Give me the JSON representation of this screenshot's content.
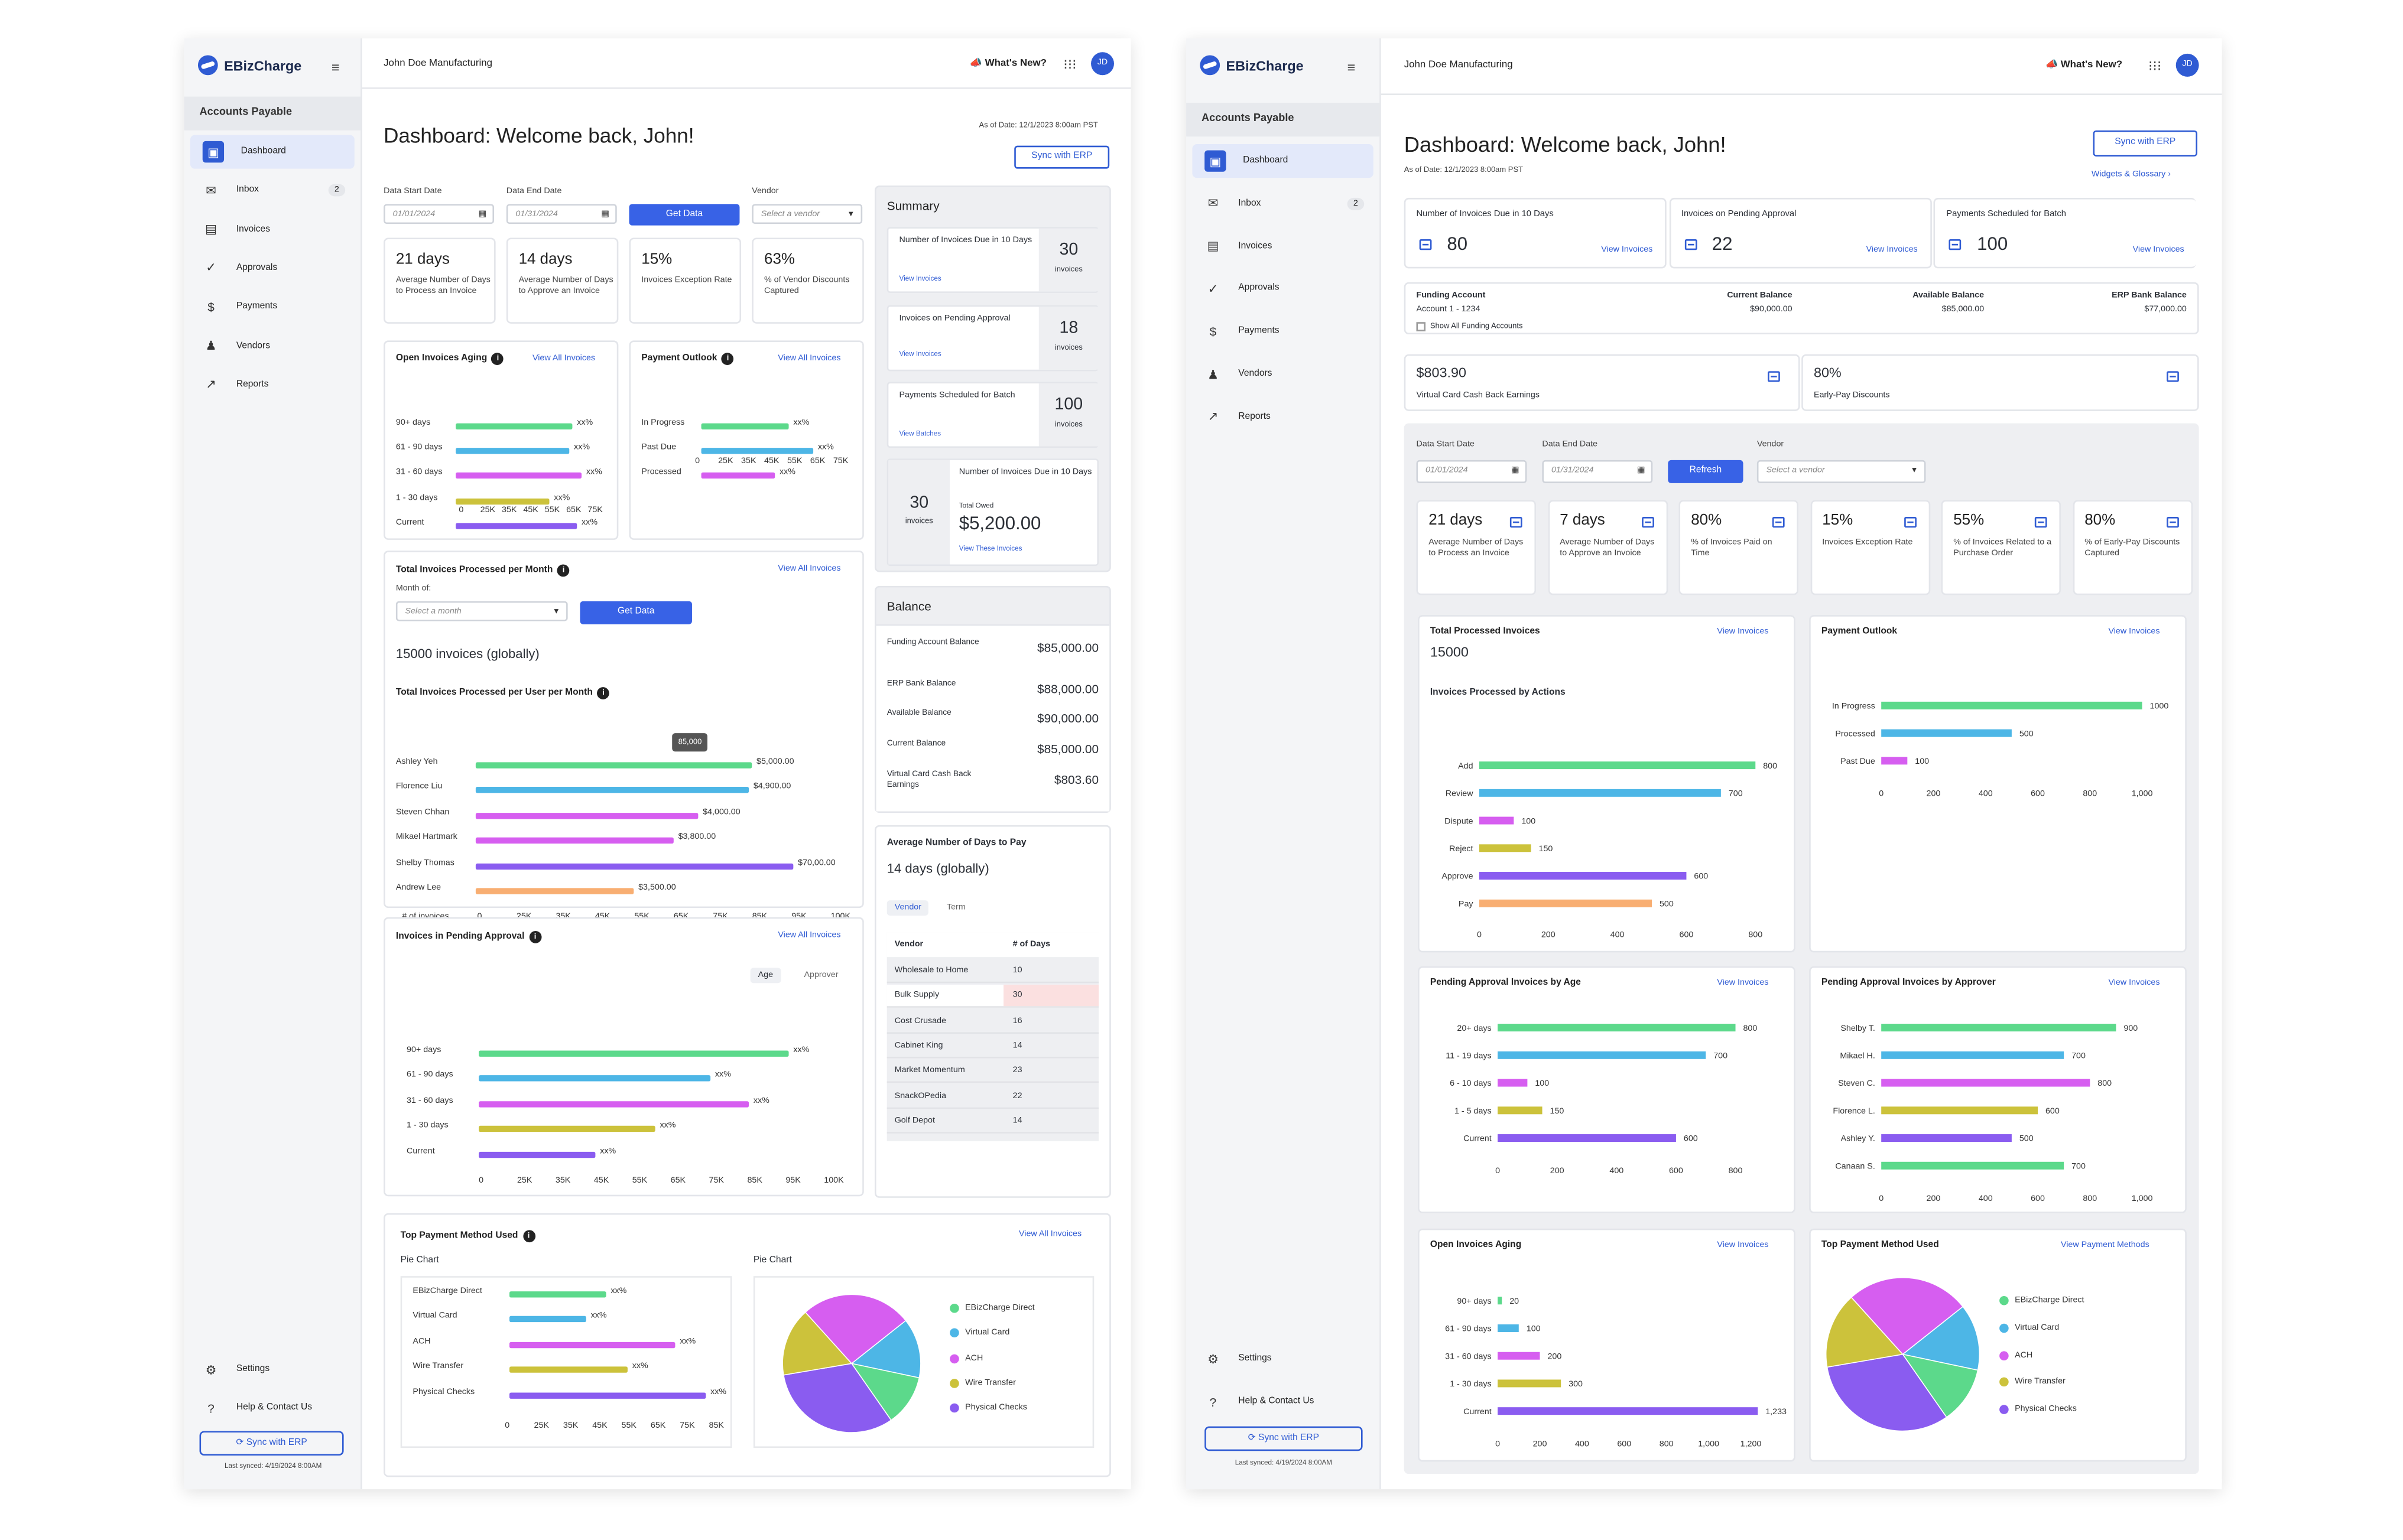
{
  "s1": {
    "logo": "EBizCharge",
    "section": "Accounts Payable",
    "company": "John Doe Manufacturing",
    "whats_new": "What's New?",
    "avatar": "JD",
    "nav": [
      {
        "label": "Dashboard"
      },
      {
        "label": "Inbox",
        "badge": "2"
      },
      {
        "label": "Invoices"
      },
      {
        "label": "Approvals"
      },
      {
        "label": "Payments"
      },
      {
        "label": "Vendors"
      },
      {
        "label": "Reports"
      }
    ],
    "settings": "Settings",
    "help": "Help & Contact Us",
    "sync": "Sync with ERP",
    "last_synced": "Last synced: 4/19/2024 8:00AM",
    "title": "Dashboard: Welcome back, John!",
    "as_of": "As of Date: 12/1/2023 8:00am PST",
    "sync_btn": "Sync with ERP",
    "filters": {
      "start_label": "Data Start Date",
      "start": "01/01/2024",
      "end_label": "Data End Date",
      "end": "01/31/2024",
      "get": "Get Data",
      "vendor_label": "Vendor",
      "vendor_ph": "Select a vendor"
    },
    "stats": [
      {
        "v": "21 days",
        "l": "Average Number of Days to Process an Invoice"
      },
      {
        "v": "14 days",
        "l": "Average Number of Days to Approve an Invoice"
      },
      {
        "v": "15%",
        "l": "Invoices Exception Rate"
      },
      {
        "v": "63%",
        "l": "% of Vendor Discounts Captured"
      }
    ],
    "aging": {
      "title": "Open Invoices Aging",
      "link": "View All Invoices",
      "rows": [
        "90+ days",
        "61 - 90 days",
        "31 - 60 days",
        "1 - 30 days",
        "Current"
      ],
      "val": "xx%",
      "ticks": [
        "0",
        "25K",
        "35K",
        "45K",
        "55K",
        "65K",
        "75K"
      ]
    },
    "outlook": {
      "title": "Payment Outlook",
      "link": "View All Invoices",
      "rows": [
        "In Progress",
        "Past Due",
        "Processed"
      ],
      "val": "xx%",
      "ticks": [
        "0",
        "25K",
        "35K",
        "45K",
        "55K",
        "65K",
        "75K"
      ]
    },
    "summary": {
      "title": "Summary",
      "items": [
        {
          "label": "Number of Invoices Due in 10 Days",
          "link": "View Invoices",
          "num": "30",
          "unit": "invoices"
        },
        {
          "label": "Invoices on Pending Approval",
          "link": "View Invoices",
          "num": "18",
          "unit": "invoices"
        },
        {
          "label": "Payments Scheduled for Batch",
          "link": "View Batches",
          "num": "100",
          "unit": "invoices"
        }
      ],
      "due": {
        "num": "30",
        "unit": "invoices",
        "label": "Number of Invoices Due in 10 Days",
        "owed_label": "Total Owed",
        "owed": "$5,200.00",
        "link": "View These Invoices"
      }
    },
    "balance": {
      "title": "Balance",
      "rows": [
        {
          "l": "Funding Account Balance",
          "v": "$85,000.00"
        },
        {
          "l": "ERP Bank Balance",
          "v": "$88,000.00"
        },
        {
          "l": "Available Balance",
          "v": "$90,000.00"
        },
        {
          "l": "Current Balance",
          "v": "$85,000.00"
        },
        {
          "l": "Virtual Card Cash Back Earnings",
          "v": "$803.60"
        }
      ]
    },
    "month": {
      "title": "Total Invoices Processed per Month",
      "link": "View All Invoices",
      "month_label": "Month of:",
      "month_ph": "Select a month",
      "get": "Get Data",
      "total": "15000 invoices (globally)"
    },
    "user": {
      "title": "Total Invoices Processed per User per Month",
      "tooltip": "85,000",
      "rows": [
        {
          "n": "Ashley Yeh",
          "v": "$5,000.00"
        },
        {
          "n": "Florence Liu",
          "v": "$4,900.00"
        },
        {
          "n": "Steven Chhan",
          "v": "$4,000.00"
        },
        {
          "n": "Mikael Hartmark",
          "v": "$3,800.00"
        },
        {
          "n": "Shelby Thomas",
          "v": "$70,00.00"
        },
        {
          "n": "Andrew Lee",
          "v": "$3,500.00"
        }
      ],
      "axis_label": "# of invoices",
      "ticks": [
        "0",
        "25K",
        "35K",
        "45K",
        "55K",
        "65K",
        "75K",
        "85K",
        "95K",
        "100K"
      ]
    },
    "avgpay": {
      "title": "Average Number of Days to Pay",
      "total": "14 days (globally)",
      "tabs": [
        "Vendor",
        "Term"
      ],
      "col1": "Vendor",
      "col2": "# of Days",
      "rows": [
        [
          "Wholesale to Home",
          "10"
        ],
        [
          "Bulk Supply",
          "30"
        ],
        [
          "Cost Crusade",
          "16"
        ],
        [
          "Cabinet King",
          "14"
        ],
        [
          "Market Momentum",
          "23"
        ],
        [
          "SnackOPedia",
          "22"
        ],
        [
          "Golf Depot",
          "14"
        ]
      ]
    },
    "pending": {
      "title": "Invoices in Pending Approval",
      "link": "View All Invoices",
      "tabs": [
        "Age",
        "Approver"
      ],
      "rows": [
        "90+ days",
        "61 - 90 days",
        "31 - 60 days",
        "1 - 30 days",
        "Current"
      ],
      "val": "xx%",
      "ticks": [
        "0",
        "25K",
        "35K",
        "45K",
        "55K",
        "65K",
        "75K",
        "85K",
        "95K",
        "100K"
      ]
    },
    "method": {
      "title": "Top Payment Method Used",
      "link": "View All Invoices",
      "left_label": "Pie Chart",
      "right_label": "Pie Chart",
      "rows": [
        "EBizCharge Direct",
        "Virtual Card",
        "ACH",
        "Wire Transfer",
        "Physical Checks"
      ],
      "val": "xx%",
      "ticks": [
        "0",
        "25K",
        "35K",
        "45K",
        "55K",
        "65K",
        "75K",
        "85K"
      ]
    }
  },
  "s2": {
    "logo": "EBizCharge",
    "section": "Accounts Payable",
    "company": "John Doe Manufacturing",
    "whats_new": "What's New?",
    "avatar": "JD",
    "nav": [
      {
        "label": "Dashboard"
      },
      {
        "label": "Inbox",
        "badge": "2"
      },
      {
        "label": "Invoices"
      },
      {
        "label": "Approvals"
      },
      {
        "label": "Payments"
      },
      {
        "label": "Vendors"
      },
      {
        "label": "Reports"
      }
    ],
    "settings": "Settings",
    "help": "Help & Contact Us",
    "sync": "Sync with ERP",
    "last_synced": "Last synced: 4/19/2024 8:00AM",
    "title": "Dashboard: Welcome back, John!",
    "as_of": "As of Date: 12/1/2023 8:00am PST",
    "sync_btn": "Sync with ERP",
    "widgets": "Widgets & Glossary",
    "kpis": [
      {
        "label": "Number of Invoices Due in 10 Days",
        "num": "80",
        "link": "View Invoices"
      },
      {
        "label": "Invoices on Pending Approval",
        "num": "22",
        "link": "View Invoices"
      },
      {
        "label": "Payments Scheduled for Batch",
        "num": "100",
        "link": "View Invoices"
      }
    ],
    "funding": {
      "label": "Funding Account",
      "value": "Account 1 - 1234",
      "show_all": "Show All Funding Accounts",
      "current_label": "Current Balance",
      "current": "$90,000.00",
      "avail_label": "Available Balance",
      "avail": "$85,000.00",
      "erp_label": "ERP Bank Balance",
      "erp": "$77,000.00"
    },
    "cash": [
      {
        "v": "$803.90",
        "l": "Virtual Card Cash Back Earnings"
      },
      {
        "v": "80%",
        "l": "Early-Pay Discounts"
      }
    ],
    "filters": {
      "start_label": "Data Start Date",
      "start": "01/01/2024",
      "end_label": "Data End Date",
      "end": "01/31/2024",
      "refresh": "Refresh",
      "vendor_label": "Vendor",
      "vendor_ph": "Select a vendor"
    },
    "stats": [
      {
        "v": "21 days",
        "l": "Average Number of Days to Process an Invoice"
      },
      {
        "v": "7 days",
        "l": "Average Number of Days to Approve an Invoice"
      },
      {
        "v": "80%",
        "l": "% of Invoices Paid on Time"
      },
      {
        "v": "15%",
        "l": "Invoices Exception Rate"
      },
      {
        "v": "55%",
        "l": "% of Invoices Related to a Purchase Order"
      },
      {
        "v": "80%",
        "l": "% of Early-Pay Discounts Captured"
      }
    ],
    "processed": {
      "title": "Total Processed Invoices",
      "link": "View Invoices",
      "total": "15000",
      "sub": "Invoices Processed by Actions"
    },
    "outlook": {
      "title": "Payment Outlook",
      "link": "View Invoices"
    },
    "age": {
      "title": "Pending Approval Invoices by Age",
      "link": "View Invoices"
    },
    "approver": {
      "title": "Pending Approval Invoices by Approver",
      "link": "View Invoices"
    },
    "aging": {
      "title": "Open Invoices Aging",
      "link": "View Invoices"
    },
    "method": {
      "title": "Top Payment Method Used",
      "link": "View Payment Methods",
      "legend": [
        "EBizCharge Direct",
        "Virtual Card",
        "ACH",
        "Wire Transfer",
        "Physical Checks"
      ]
    }
  },
  "colors": {
    "green": "#5cd98b",
    "blue": "#4db6e6",
    "magenta": "#d65ef0",
    "olive": "#ccc23b",
    "purple": "#8a5cf0",
    "orange": "#f8ae72",
    "accent": "#2f5bd3"
  },
  "chart_data": [
    {
      "type": "bar",
      "title": "Invoices Processed by Actions",
      "categories": [
        "Add",
        "Review",
        "Dispute",
        "Reject",
        "Approve",
        "Pay"
      ],
      "values": [
        800,
        700,
        100,
        150,
        600,
        500
      ],
      "xlim": [
        0,
        800
      ],
      "ticks": [
        "0",
        "200",
        "400",
        "600",
        "800"
      ]
    },
    {
      "type": "bar",
      "title": "Payment Outlook",
      "categories": [
        "In Progress",
        "Processed",
        "Past Due"
      ],
      "values": [
        1000,
        500,
        100
      ],
      "xlim": [
        0,
        1000
      ],
      "ticks": [
        "0",
        "200",
        "400",
        "600",
        "800",
        "1,000"
      ]
    },
    {
      "type": "bar",
      "title": "Pending Approval Invoices by Age",
      "categories": [
        "20+ days",
        "11 - 19 days",
        "6 - 10 days",
        "1 - 5 days",
        "Current"
      ],
      "values": [
        800,
        700,
        100,
        150,
        600
      ],
      "xlim": [
        0,
        800
      ],
      "ticks": [
        "0",
        "200",
        "400",
        "600",
        "800"
      ]
    },
    {
      "type": "bar",
      "title": "Pending Approval Invoices by Approver",
      "categories": [
        "Shelby T.",
        "Mikael H.",
        "Steven C.",
        "Florence L.",
        "Ashley Y.",
        "Canaan S."
      ],
      "values": [
        900,
        700,
        800,
        600,
        500,
        700
      ],
      "xlim": [
        0,
        1000
      ],
      "ticks": [
        "0",
        "200",
        "400",
        "600",
        "800",
        "1,000"
      ]
    },
    {
      "type": "bar",
      "title": "Open Invoices Aging",
      "categories": [
        "90+ days",
        "61 - 90 days",
        "31 - 60 days",
        "1 - 30 days",
        "Current"
      ],
      "values": [
        20,
        100,
        200,
        300,
        1233
      ],
      "value_labels": [
        "20",
        "100",
        "200",
        "300",
        "1,233"
      ],
      "xlim": [
        0,
        1200
      ],
      "ticks": [
        "0",
        "200",
        "400",
        "600",
        "800",
        "1,000",
        "1,200"
      ]
    },
    {
      "type": "pie",
      "title": "Top Payment Method Used",
      "categories": [
        "EBizCharge Direct",
        "Virtual Card",
        "ACH",
        "Wire Transfer",
        "Physical Checks"
      ],
      "values": [
        14,
        12,
        32,
        16,
        26
      ]
    }
  ]
}
